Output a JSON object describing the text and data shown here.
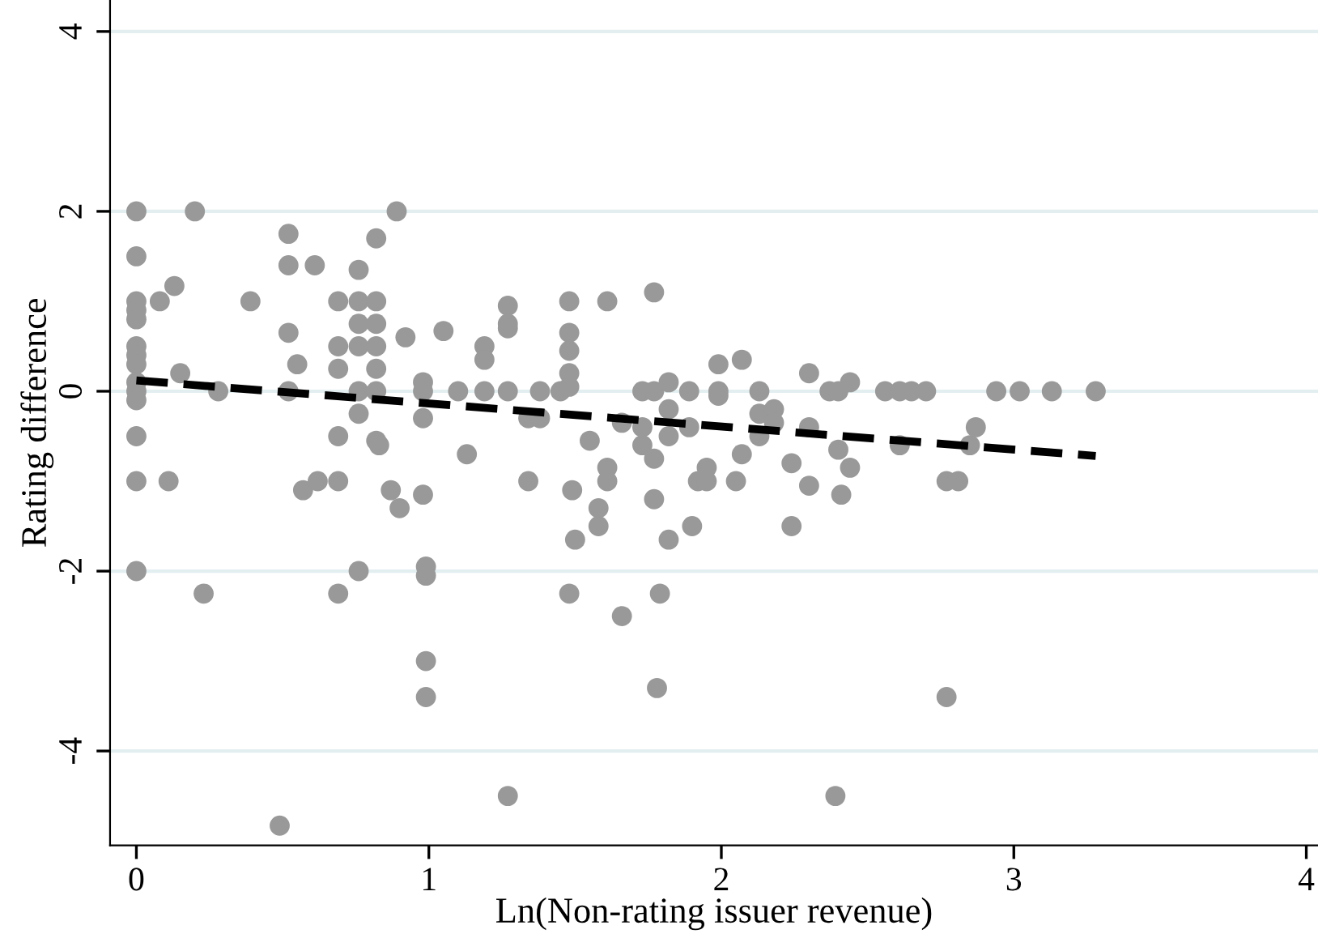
{
  "chart_data": {
    "type": "scatter",
    "xlabel": "Ln(Non-rating issuer revenue)",
    "ylabel": "Rating difference",
    "xlim": [
      -0.09,
      4.04
    ],
    "ylim": [
      -5.05,
      4.35
    ],
    "xticks": [
      0,
      1,
      2,
      3,
      4
    ],
    "yticks": [
      -4,
      -2,
      0,
      2,
      4
    ],
    "grid": "y",
    "marker": "circle",
    "series": [
      {
        "color": "#999999",
        "x": [
          0,
          0,
          0,
          0,
          0,
          0,
          0,
          0,
          0,
          0,
          0,
          0,
          0,
          0,
          0.08,
          0.11,
          0.13,
          0.15,
          0.2,
          0.23,
          0.28,
          0.39,
          0.49,
          0.52,
          0.52,
          0.52,
          0.55,
          0.52,
          0.57,
          0.61,
          0.62,
          0.69,
          0.69,
          0.69,
          0.69,
          0.69,
          0.69,
          0.76,
          0.76,
          0.76,
          0.76,
          0.76,
          0.76,
          0.76,
          0.82,
          0.82,
          0.82,
          0.82,
          0.82,
          0.82,
          0.82,
          0.83,
          0.87,
          0.89,
          0.9,
          0.92,
          0.98,
          0.98,
          0.98,
          0.98,
          0.99,
          0.99,
          0.99,
          0.99,
          1.05,
          1.1,
          1.13,
          1.19,
          1.19,
          1.19,
          1.27,
          1.27,
          1.27,
          1.27,
          1.27,
          1.34,
          1.34,
          1.38,
          1.38,
          1.45,
          1.48,
          1.48,
          1.48,
          1.48,
          1.48,
          1.48,
          1.49,
          1.5,
          1.55,
          1.58,
          1.58,
          1.61,
          1.61,
          1.61,
          1.66,
          1.66,
          1.73,
          1.73,
          1.73,
          1.77,
          1.77,
          1.78,
          1.79,
          1.77,
          1.77,
          1.82,
          1.82,
          1.82,
          1.82,
          1.89,
          1.89,
          1.9,
          1.92,
          1.95,
          1.95,
          1.99,
          1.99,
          1.99,
          2.07,
          2.07,
          2.05,
          2.13,
          2.13,
          2.13,
          2.18,
          2.18,
          2.24,
          2.24,
          2.3,
          2.3,
          2.3,
          2.37,
          2.39,
          2.4,
          2.4,
          2.41,
          2.44,
          2.44,
          2.56,
          2.61,
          2.61,
          2.65,
          2.7,
          2.77,
          2.77,
          2.81,
          2.85,
          2.87,
          2.94,
          3.02,
          3.13,
          3.28
        ],
        "values": [
          2,
          1.5,
          1,
          0.9,
          0.8,
          0.5,
          0.4,
          0.3,
          0.1,
          0,
          -0.1,
          -0.5,
          -1,
          -2,
          1,
          -1,
          1.17,
          0.2,
          2,
          -2.25,
          0,
          1,
          -4.83,
          1.75,
          1.4,
          0.65,
          0.3,
          0,
          -1.1,
          1.4,
          -1,
          1,
          0.5,
          0.25,
          -0.5,
          -1,
          -2.25,
          1.35,
          1,
          0.75,
          0.5,
          0,
          -0.25,
          -2,
          1.7,
          1,
          0.75,
          0.5,
          0.25,
          0,
          -0.55,
          -0.6,
          -1.1,
          2,
          -1.3,
          0.6,
          0.1,
          0,
          -0.3,
          -1.15,
          -1.95,
          -2.05,
          -3,
          -3.4,
          0.67,
          0,
          -0.7,
          0.5,
          0.35,
          0,
          0.95,
          0.75,
          0.7,
          0,
          -4.5,
          -1,
          -0.3,
          -0.3,
          0,
          0,
          -2.25,
          1,
          0.65,
          0.45,
          0.2,
          0.05,
          -1.1,
          -1.65,
          -0.55,
          -1.5,
          -1.3,
          1,
          -0.85,
          -1,
          -2.5,
          -0.35,
          -0.6,
          0,
          -0.4,
          1.1,
          0,
          -3.3,
          -2.25,
          -0.75,
          -1.2,
          0.1,
          -0.2,
          -0.5,
          -1.65,
          0,
          -0.4,
          -1.5,
          -1,
          -1,
          -0.85,
          0.3,
          0,
          -0.05,
          0.35,
          -0.7,
          -1,
          -0.25,
          -0.5,
          0,
          -0.2,
          -0.35,
          -0.8,
          -1.5,
          0.2,
          -0.4,
          -1.05,
          0,
          -4.5,
          0,
          -0.65,
          -1.15,
          0.1,
          -0.85,
          0,
          0,
          -0.6,
          0,
          0,
          -1,
          -3.4,
          -1,
          -0.6,
          -0.4,
          0,
          0,
          0,
          0
        ]
      },
      {
        "type": "line",
        "color": "#000000",
        "line_style": "dashed",
        "marker": "none",
        "x": [
          0,
          3.28
        ],
        "values": [
          0.12,
          -0.72
        ]
      }
    ]
  }
}
